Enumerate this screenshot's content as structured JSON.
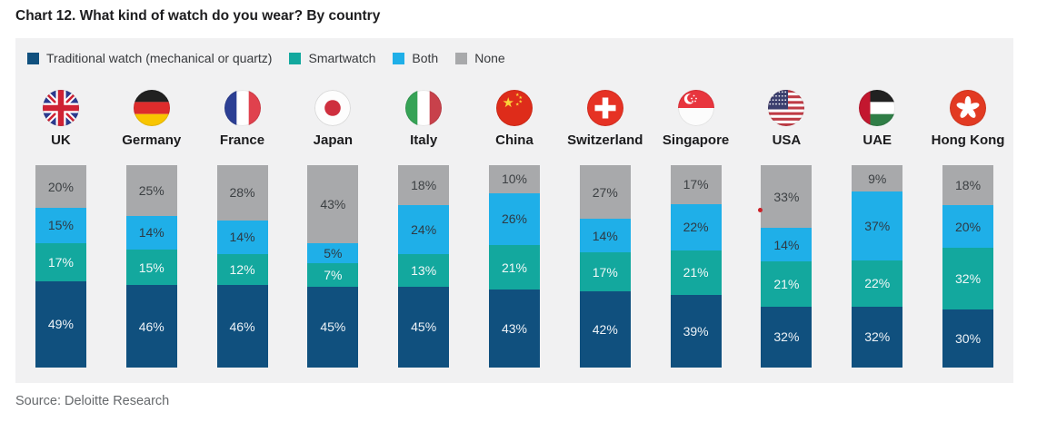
{
  "page": {
    "title": "Chart 12. What kind of watch do you wear? By country",
    "source": "Source: Deloitte Research"
  },
  "legend": {
    "items": [
      {
        "label": "Traditional watch (mechanical or quartz)",
        "color": "#10507e"
      },
      {
        "label": "Smartwatch",
        "color": "#13a89e"
      },
      {
        "label": "Both",
        "color": "#1fafe8"
      },
      {
        "label": "None",
        "color": "#a8a9ab"
      }
    ]
  },
  "chart_data": {
    "type": "bar",
    "stacked": true,
    "orientation": "vertical",
    "title": "Chart 12. What kind of watch do you wear? By country",
    "legend_position": "top",
    "grid": false,
    "value_suffix": "%",
    "categories": [
      "UK",
      "Germany",
      "France",
      "Japan",
      "Italy",
      "China",
      "Switzerland",
      "Singapore",
      "USA",
      "UAE",
      "Hong Kong"
    ],
    "flag_icons": [
      "uk",
      "germany",
      "france",
      "japan",
      "italy",
      "china",
      "switzerland",
      "singapore",
      "usa",
      "uae",
      "hongkong"
    ],
    "series": [
      {
        "name": "Traditional watch (mechanical or quartz)",
        "color": "#10507e",
        "label_color": "#eef3f7",
        "values": [
          49,
          46,
          46,
          45,
          45,
          43,
          42,
          39,
          32,
          32,
          30
        ]
      },
      {
        "name": "Smartwatch",
        "color": "#13a89e",
        "label_color": "#f2f8f8",
        "values": [
          17,
          15,
          12,
          7,
          13,
          21,
          17,
          21,
          21,
          22,
          32
        ]
      },
      {
        "name": "Both",
        "color": "#1fafe8",
        "label_color": "#2e3a44",
        "values": [
          15,
          14,
          14,
          5,
          24,
          26,
          14,
          22,
          14,
          37,
          20
        ]
      },
      {
        "name": "None",
        "color": "#a8a9ab",
        "label_color": "#3c4043",
        "values": [
          20,
          25,
          28,
          43,
          18,
          10,
          27,
          17,
          33,
          9,
          18
        ]
      }
    ]
  },
  "artifacts": {
    "stray_dot_color": "#cb2128"
  }
}
